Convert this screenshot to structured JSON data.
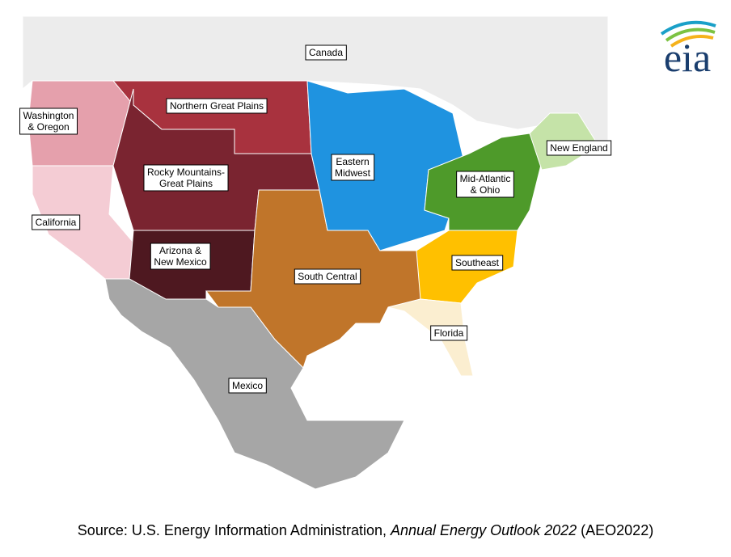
{
  "logo": {
    "text": "eia"
  },
  "labels": [
    {
      "lines": [
        "Canada"
      ]
    },
    {
      "lines": [
        "Northern Great Plains"
      ]
    },
    {
      "lines": [
        "Washington",
        "& Oregon"
      ]
    },
    {
      "lines": [
        "Rocky Mountains-",
        "Great Plains"
      ]
    },
    {
      "lines": [
        "California"
      ]
    },
    {
      "lines": [
        "Arizona &",
        "New Mexico"
      ]
    },
    {
      "lines": [
        "South Central"
      ]
    },
    {
      "lines": [
        "Eastern",
        "Midwest"
      ]
    },
    {
      "lines": [
        "Mid-Atlantic",
        "& Ohio"
      ]
    },
    {
      "lines": [
        "New England"
      ]
    },
    {
      "lines": [
        "Southeast"
      ]
    },
    {
      "lines": [
        "Florida"
      ]
    },
    {
      "lines": [
        "Mexico"
      ]
    }
  ],
  "source": {
    "prefix": "Source: U.S. Energy Information Administration, ",
    "title": "Annual Energy Outlook 2022",
    "suffix": " (AEO2022)"
  }
}
